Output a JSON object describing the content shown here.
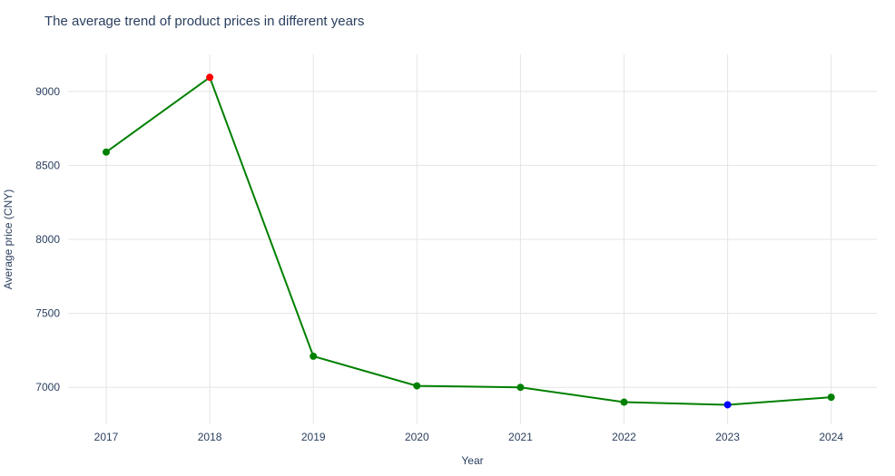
{
  "chart_data": {
    "type": "line",
    "title": "The average trend of product prices in different years",
    "xlabel": "Year",
    "ylabel": "Average price (CNY)",
    "x": [
      "2017",
      "2018",
      "2019",
      "2020",
      "2021",
      "2022",
      "2023",
      "2024"
    ],
    "series": [
      {
        "values": [
          8590,
          9095,
          7210,
          7010,
          7000,
          6900,
          6882,
          6933
        ]
      }
    ],
    "highlights": {
      "max": {
        "x": "2018",
        "color": "#ff0000"
      },
      "min": {
        "x": "2023",
        "color": "#0000ff"
      }
    },
    "yticks": [
      7000,
      7500,
      8000,
      8500,
      9000
    ],
    "ylim": [
      6750,
      9250
    ],
    "grid": true,
    "colors": {
      "line": "#008000",
      "marker": "#008000",
      "grid": "#e5e5e5",
      "text": "#2a3f5f"
    }
  }
}
